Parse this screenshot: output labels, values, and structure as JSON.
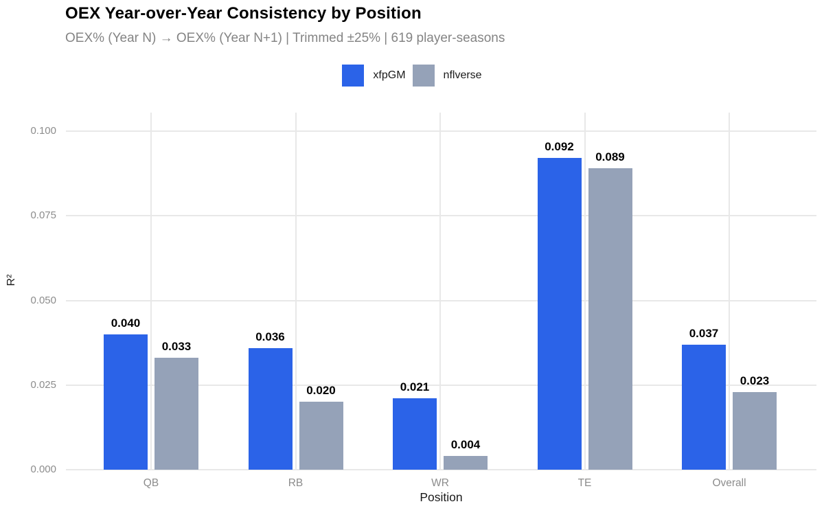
{
  "header": {
    "title": "OEX Year-over-Year Consistency by Position",
    "subtitle": "OEX% (Year N) → OEX% (Year N+1) | Trimmed ±25% | 619 player-seasons"
  },
  "legend": {
    "items": [
      {
        "label": "xfpGM",
        "color": "#2B63E8"
      },
      {
        "label": "nflverse",
        "color": "#95A2B8"
      }
    ]
  },
  "chart_data": {
    "type": "bar",
    "title": "OEX Year-over-Year Consistency by Position",
    "subtitle": "OEX% (Year N) → OEX% (Year N+1) | Trimmed ±25% | 619 player-seasons",
    "categories": [
      "QB",
      "RB",
      "WR",
      "TE",
      "Overall"
    ],
    "series": [
      {
        "name": "xfpGM",
        "color": "#2B63E8",
        "values": [
          0.04,
          0.036,
          0.021,
          0.092,
          0.037
        ]
      },
      {
        "name": "nflverse",
        "color": "#95A2B8",
        "values": [
          0.033,
          0.02,
          0.004,
          0.089,
          0.023
        ]
      }
    ],
    "value_labels": [
      [
        "0.040",
        "0.036",
        "0.021",
        "0.092",
        "0.037"
      ],
      [
        "0.033",
        "0.020",
        "0.004",
        "0.089",
        "0.023"
      ]
    ],
    "xlabel": "Position",
    "ylabel": "R²",
    "yticks": [
      0.0,
      0.025,
      0.05,
      0.075,
      0.1
    ],
    "ytick_labels": [
      "0.000",
      "0.025",
      "0.050",
      "0.075",
      "0.100"
    ],
    "ylim": [
      0,
      0.1055
    ],
    "grid": true,
    "grid_color": "#e8e8e8",
    "legend_position": "top"
  }
}
